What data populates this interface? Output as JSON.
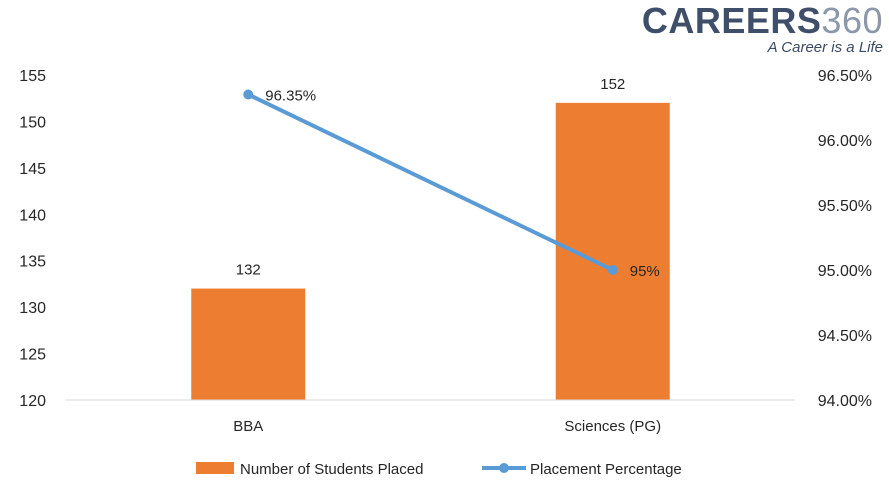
{
  "logo": {
    "brand": "CAREERS",
    "number": "360",
    "tagline": "A Career is a Life"
  },
  "chart_data": {
    "type": "bar",
    "categories": [
      "BBA",
      "Sciences (PG)"
    ],
    "series": [
      {
        "name": "Number of Students Placed",
        "type": "bar",
        "axis": "left",
        "values": [
          132,
          152
        ],
        "labels": [
          "132",
          "152"
        ],
        "color": "#ED7D31"
      },
      {
        "name": "Placement Percentage",
        "type": "line",
        "axis": "right",
        "values": [
          96.35,
          95.0
        ],
        "labels": [
          "96.35%",
          "95%"
        ],
        "color": "#5B9BD5"
      }
    ],
    "y_left": {
      "ylim": [
        120,
        155
      ],
      "ticks": [
        "120",
        "125",
        "130",
        "135",
        "140",
        "145",
        "150",
        "155"
      ],
      "tick_values": [
        120,
        125,
        130,
        135,
        140,
        145,
        150,
        155
      ]
    },
    "y_right": {
      "ylim": [
        94.0,
        96.5
      ],
      "ticks": [
        "94.00%",
        "94.50%",
        "95.00%",
        "95.50%",
        "96.00%",
        "96.50%"
      ],
      "tick_values": [
        94.0,
        94.5,
        95.0,
        95.5,
        96.0,
        96.5
      ]
    },
    "grid": false,
    "legend_position": "bottom"
  }
}
